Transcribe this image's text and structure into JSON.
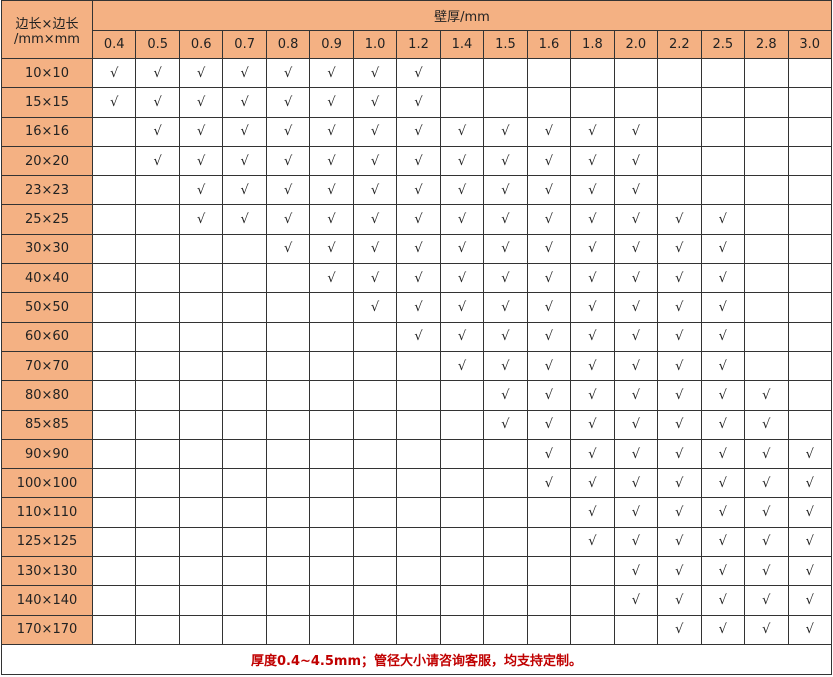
{
  "header": {
    "corner_line1": "边长×边长",
    "corner_line2": "/mm×mm",
    "group_label": "壁厚/mm",
    "thicknesses": [
      "0.4",
      "0.5",
      "0.6",
      "0.7",
      "0.8",
      "0.9",
      "1.0",
      "1.2",
      "1.4",
      "1.5",
      "1.6",
      "1.8",
      "2.0",
      "2.2",
      "2.5",
      "2.8",
      "3.0"
    ]
  },
  "rows": [
    {
      "size": "10×10",
      "cells": [
        "√",
        "√",
        "√",
        "√",
        "√",
        "√",
        "√",
        "√",
        "",
        "",
        "",
        "",
        "",
        "",
        "",
        "",
        ""
      ]
    },
    {
      "size": "15×15",
      "cells": [
        "√",
        "√",
        "√",
        "√",
        "√",
        "√",
        "√",
        "√",
        "",
        "",
        "",
        "",
        "",
        "",
        "",
        "",
        ""
      ]
    },
    {
      "size": "16×16",
      "cells": [
        "",
        "√",
        "√",
        "√",
        "√",
        "√",
        "√",
        "√",
        "√",
        "√",
        "√",
        "√",
        "√",
        "",
        "",
        "",
        ""
      ]
    },
    {
      "size": "20×20",
      "cells": [
        "",
        "√",
        "√",
        "√",
        "√",
        "√",
        "√",
        "√",
        "√",
        "√",
        "√",
        "√",
        "√",
        "",
        "",
        "",
        ""
      ]
    },
    {
      "size": "23×23",
      "cells": [
        "",
        "",
        "√",
        "√",
        "√",
        "√",
        "√",
        "√",
        "√",
        "√",
        "√",
        "√",
        "√",
        "",
        "",
        "",
        ""
      ]
    },
    {
      "size": "25×25",
      "cells": [
        "",
        "",
        "√",
        "√",
        "√",
        "√",
        "√",
        "√",
        "√",
        "√",
        "√",
        "√",
        "√",
        "√",
        "√",
        "",
        ""
      ]
    },
    {
      "size": "30×30",
      "cells": [
        "",
        "",
        "",
        "",
        "√",
        "√",
        "√",
        "√",
        "√",
        "√",
        "√",
        "√",
        "√",
        "√",
        "√",
        "",
        ""
      ]
    },
    {
      "size": "40×40",
      "cells": [
        "",
        "",
        "",
        "",
        "",
        "√",
        "√",
        "√",
        "√",
        "√",
        "√",
        "√",
        "√",
        "√",
        "√",
        "",
        ""
      ]
    },
    {
      "size": "50×50",
      "cells": [
        "",
        "",
        "",
        "",
        "",
        "",
        "√",
        "√",
        "√",
        "√",
        "√",
        "√",
        "√",
        "√",
        "√",
        "",
        ""
      ]
    },
    {
      "size": "60×60",
      "cells": [
        "",
        "",
        "",
        "",
        "",
        "",
        "",
        "√",
        "√",
        "√",
        "√",
        "√",
        "√",
        "√",
        "√",
        "",
        ""
      ]
    },
    {
      "size": "70×70",
      "cells": [
        "",
        "",
        "",
        "",
        "",
        "",
        "",
        "",
        "√",
        "√",
        "√",
        "√",
        "√",
        "√",
        "√",
        "",
        ""
      ]
    },
    {
      "size": "80×80",
      "cells": [
        "",
        "",
        "",
        "",
        "",
        "",
        "",
        "",
        "",
        "√",
        "√",
        "√",
        "√",
        "√",
        "√",
        "√",
        ""
      ]
    },
    {
      "size": "85×85",
      "cells": [
        "",
        "",
        "",
        "",
        "",
        "",
        "",
        "",
        "",
        "√",
        "√",
        "√",
        "√",
        "√",
        "√",
        "√",
        ""
      ]
    },
    {
      "size": "90×90",
      "cells": [
        "",
        "",
        "",
        "",
        "",
        "",
        "",
        "",
        "",
        "",
        "√",
        "√",
        "√",
        "√",
        "√",
        "√",
        "√"
      ]
    },
    {
      "size": "100×100",
      "cells": [
        "",
        "",
        "",
        "",
        "",
        "",
        "",
        "",
        "",
        "",
        "√",
        "√",
        "√",
        "√",
        "√",
        "√",
        "√"
      ]
    },
    {
      "size": "110×110",
      "cells": [
        "",
        "",
        "",
        "",
        "",
        "",
        "",
        "",
        "",
        "",
        "",
        "√",
        "√",
        "√",
        "√",
        "√",
        "√"
      ]
    },
    {
      "size": "125×125",
      "cells": [
        "",
        "",
        "",
        "",
        "",
        "",
        "",
        "",
        "",
        "",
        "",
        "√",
        "√",
        "√",
        "√",
        "√",
        "√"
      ]
    },
    {
      "size": "130×130",
      "cells": [
        "",
        "",
        "",
        "",
        "",
        "",
        "",
        "",
        "",
        "",
        "",
        "",
        "√",
        "√",
        "√",
        "√",
        "√"
      ]
    },
    {
      "size": "140×140",
      "cells": [
        "",
        "",
        "",
        "",
        "",
        "",
        "",
        "",
        "",
        "",
        "",
        "",
        "√",
        "√",
        "√",
        "√",
        "√"
      ]
    },
    {
      "size": "170×170",
      "cells": [
        "",
        "",
        "",
        "",
        "",
        "",
        "",
        "",
        "",
        "",
        "",
        "",
        "",
        "√",
        "√",
        "√",
        "√"
      ]
    }
  ],
  "footer": "厚度0.4~4.5mm；管径大小请咨询客服，均支持定制。",
  "colors": {
    "header_bg": "#f4b183",
    "border": "#333333",
    "footer_text": "#c00000"
  }
}
